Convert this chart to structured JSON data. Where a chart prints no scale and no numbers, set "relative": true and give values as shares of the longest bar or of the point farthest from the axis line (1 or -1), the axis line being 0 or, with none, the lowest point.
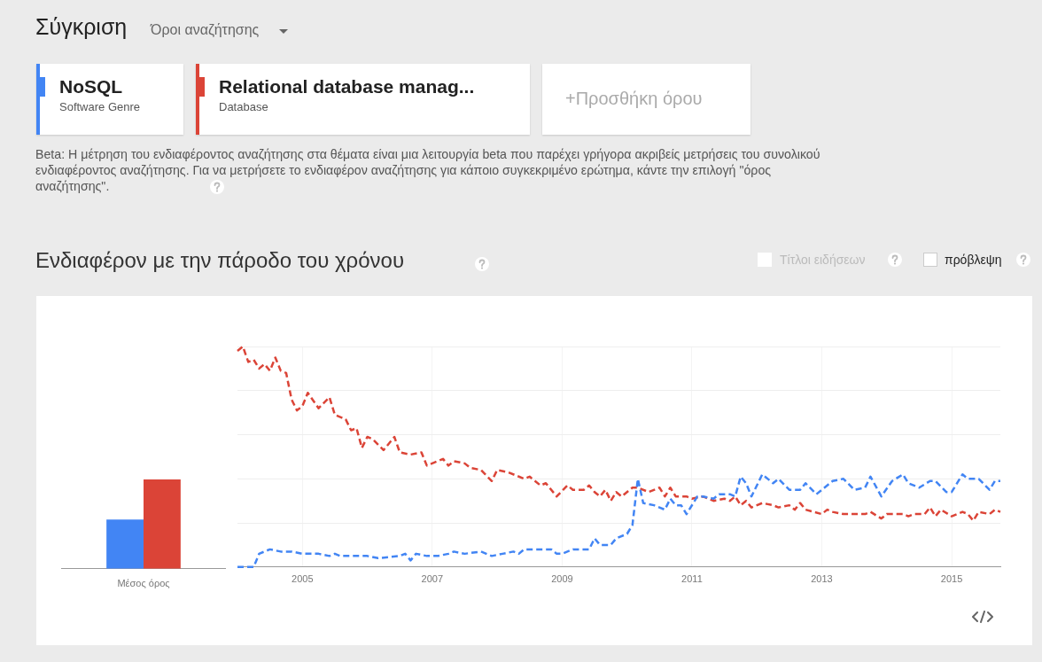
{
  "chart_data": [
    {
      "type": "bar",
      "relative": true,
      "categories": [
        "Μέσος όρος"
      ],
      "series": [
        {
          "color": "#4285f4",
          "values": [
            0.55
          ]
        },
        {
          "color": "#db4437",
          "values": [
            1
          ]
        }
      ]
    },
    {
      "type": "line",
      "title": "Ενδιαφέρον με την πάροδο του χρόνου",
      "relative": true,
      "grid": true,
      "legend": "top",
      "marker": "none",
      "line_style": "dashed",
      "xlim": [
        "2004-01",
        "2015-10"
      ],
      "xticks": [
        "2005",
        "2007",
        "2009",
        "2011",
        "2013",
        "2015"
      ],
      "annotations": [
        "Σύγκριση",
        "Όροι αναζήτησης",
        "Software Genre",
        "Database",
        "+Προσθήκη όρου",
        "Beta: Η μέτρηση του ενδιαφέροντος αναζήτησης στα θέματα είναι μια λειτουργία beta που παρέχει γρήγορα ακριβείς μετρήσεις του συνολικού ενδιαφέροντος αναζήτησης. Για να μετρήσετε το ενδιαφέρον αναζήτησης για κάποιο συγκεκριμένο ερώτημα, κάντε την επιλογή \"όρος αναζήτησης\".",
        "Τίτλοι ειδήσεων",
        "πρόβλεψη"
      ],
      "series": [
        {
          "name": "NoSQL",
          "color": "#4285f4",
          "x": [
            "2004-01",
            "2004-04",
            "2004-05",
            "2004-07",
            "2004-09",
            "2004-11",
            "2005-01",
            "2005-04",
            "2005-06",
            "2005-07",
            "2005-08",
            "2006-01",
            "2006-03",
            "2006-07",
            "2006-08",
            "2006-09",
            "2006-10",
            "2006-12",
            "2007-02",
            "2007-04",
            "2007-05",
            "2007-07",
            "2007-10",
            "2007-12",
            "2008-02",
            "2008-04",
            "2008-05",
            "2008-06",
            "2008-11",
            "2008-12",
            "2009-01",
            "2009-03",
            "2009-06",
            "2009-07",
            "2009-08",
            "2009-10",
            "2009-11",
            "2010-01",
            "2010-02",
            "2010-03",
            "2010-04",
            "2010-06",
            "2010-08",
            "2010-09",
            "2010-10",
            "2010-11",
            "2010-12",
            "2011-02",
            "2011-03",
            "2011-05",
            "2011-06",
            "2011-08",
            "2011-09",
            "2011-10",
            "2011-11",
            "2011-12",
            "2012-02",
            "2012-04",
            "2012-05",
            "2012-07",
            "2012-09",
            "2012-10",
            "2012-12",
            "2013-03",
            "2013-05",
            "2013-07",
            "2013-09",
            "2013-10",
            "2013-12",
            "2014-02",
            "2014-04",
            "2014-05",
            "2014-07",
            "2014-09",
            "2014-10",
            "2014-12",
            "2015-01",
            "2015-03",
            "2015-04",
            "2015-06",
            "2015-08",
            "2015-09",
            "2015-10"
          ],
          "values": [
            0,
            0,
            0.06,
            0.08,
            0.07,
            0.07,
            0.06,
            0.06,
            0.05,
            0.06,
            0.05,
            0.05,
            0.04,
            0.05,
            0.06,
            0.03,
            0.06,
            0.05,
            0.05,
            0.06,
            0.07,
            0.06,
            0.07,
            0.05,
            0.06,
            0.07,
            0.06,
            0.08,
            0.08,
            0.06,
            0.06,
            0.08,
            0.08,
            0.13,
            0.1,
            0.1,
            0.13,
            0.15,
            0.19,
            0.4,
            0.29,
            0.28,
            0.26,
            0.31,
            0.28,
            0.28,
            0.24,
            0.32,
            0.32,
            0.31,
            0.33,
            0.33,
            0.32,
            0.41,
            0.38,
            0.32,
            0.42,
            0.38,
            0.4,
            0.35,
            0.35,
            0.38,
            0.33,
            0.39,
            0.4,
            0.35,
            0.36,
            0.41,
            0.32,
            0.39,
            0.42,
            0.38,
            0.36,
            0.39,
            0.39,
            0.34,
            0.34,
            0.42,
            0.4,
            0.4,
            0.35,
            0.39,
            0.39
          ]
        },
        {
          "name": "Relational database manag...",
          "color": "#db4437",
          "x": [
            "2004-01",
            "2004-02",
            "2004-03",
            "2004-04",
            "2004-05",
            "2004-06",
            "2004-07",
            "2004-08",
            "2004-09",
            "2004-10",
            "2004-11",
            "2004-12",
            "2005-01",
            "2005-02",
            "2005-04",
            "2005-06",
            "2005-07",
            "2005-09",
            "2005-10",
            "2005-11",
            "2005-12",
            "2006-01",
            "2006-02",
            "2006-04",
            "2006-06",
            "2006-07",
            "2006-09",
            "2006-11",
            "2006-12",
            "2007-03",
            "2007-04",
            "2007-05",
            "2007-07",
            "2007-08",
            "2007-10",
            "2007-12",
            "2008-01",
            "2008-03",
            "2008-06",
            "2008-07",
            "2008-09",
            "2008-10",
            "2008-12",
            "2009-02",
            "2009-03",
            "2009-05",
            "2009-06",
            "2009-07",
            "2009-08",
            "2009-09",
            "2009-10",
            "2009-11",
            "2009-12",
            "2010-02",
            "2010-03",
            "2010-05",
            "2010-07",
            "2010-08",
            "2010-09",
            "2010-10",
            "2010-12",
            "2011-01",
            "2011-03",
            "2011-05",
            "2011-07",
            "2011-08",
            "2011-09",
            "2011-10",
            "2011-11",
            "2011-12",
            "2012-02",
            "2012-04",
            "2012-05",
            "2012-07",
            "2012-08",
            "2012-09",
            "2012-10",
            "2013-01",
            "2013-02",
            "2013-03",
            "2013-05",
            "2013-09",
            "2013-10",
            "2013-12",
            "2014-01",
            "2014-04",
            "2014-05",
            "2014-06",
            "2014-08",
            "2014-09",
            "2014-10",
            "2014-11",
            "2015-01",
            "2015-03",
            "2015-04",
            "2015-05",
            "2015-06",
            "2015-08",
            "2015-09",
            "2015-10"
          ],
          "values": [
            0.98,
            1,
            0.93,
            0.94,
            0.9,
            0.92,
            0.89,
            0.95,
            0.89,
            0.88,
            0.76,
            0.71,
            0.73,
            0.79,
            0.72,
            0.77,
            0.69,
            0.67,
            0.62,
            0.63,
            0.54,
            0.59,
            0.58,
            0.53,
            0.59,
            0.52,
            0.51,
            0.52,
            0.46,
            0.49,
            0.46,
            0.48,
            0.47,
            0.45,
            0.44,
            0.39,
            0.44,
            0.43,
            0.4,
            0.41,
            0.37,
            0.38,
            0.32,
            0.37,
            0.35,
            0.35,
            0.37,
            0.34,
            0.32,
            0.35,
            0.3,
            0.34,
            0.32,
            0.36,
            0.36,
            0.34,
            0.36,
            0.32,
            0.36,
            0.32,
            0.32,
            0.31,
            0.32,
            0.3,
            0.31,
            0.3,
            0.32,
            0.28,
            0.3,
            0.27,
            0.29,
            0.28,
            0.27,
            0.28,
            0.26,
            0.29,
            0.26,
            0.24,
            0.26,
            0.25,
            0.24,
            0.24,
            0.25,
            0.22,
            0.24,
            0.24,
            0.23,
            0.24,
            0.24,
            0.27,
            0.23,
            0.26,
            0.23,
            0.25,
            0.24,
            0.21,
            0.25,
            0.24,
            0.26,
            0.25
          ]
        }
      ]
    }
  ]
}
